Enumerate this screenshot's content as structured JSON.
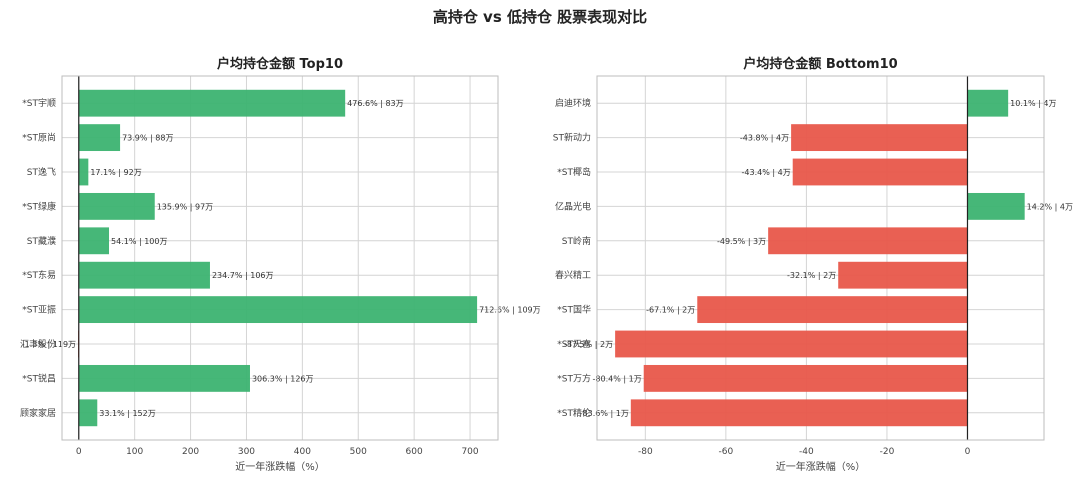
{
  "figure": {
    "suptitle": "高持仓 vs 低持仓 股票表现对比"
  },
  "chart_data": [
    {
      "type": "bar",
      "orientation": "horizontal",
      "title": "户均持仓金额 Top10",
      "xlabel": "近一年涨跌幅（%）",
      "ylabel": "",
      "xlim": [
        -30,
        750
      ],
      "xticks": [
        0,
        100,
        200,
        300,
        400,
        500,
        600,
        700
      ],
      "grid": true,
      "categories": [
        "*ST宇顺",
        "*ST原尚",
        "ST逸飞",
        "*ST绿康",
        "ST藏濮",
        "*ST东易",
        "*ST亚振",
        "汇丰股份",
        "*ST锐昌",
        "顾家家居"
      ],
      "values": [
        476.6,
        73.9,
        17.1,
        135.9,
        54.1,
        234.7,
        712.6,
        -1.3,
        306.3,
        33.1
      ],
      "labels": [
        "476.6% | 83万",
        "73.9% | 88万",
        "17.1% | 92万",
        "135.9% | 97万",
        "54.1% | 100万",
        "234.7% | 106万",
        "712.6% | 109万",
        "-1.3% | 119万",
        "306.3% | 126万",
        "33.1% | 152万"
      ],
      "positive_color": "#3cb371",
      "negative_color": "#e8574a"
    },
    {
      "type": "bar",
      "orientation": "horizontal",
      "title": "户均持仓金额 Bottom10",
      "xlabel": "近一年涨跌幅（%）",
      "ylabel": "",
      "xlim": [
        -92,
        19
      ],
      "xticks": [
        -80,
        -60,
        -40,
        -20,
        0
      ],
      "grid": true,
      "categories": [
        "启迪环境",
        "ST新动力",
        "*ST椰岛",
        "亿晶光电",
        "ST岭南",
        "春兴精工",
        "*ST国华",
        "*ST天喜",
        "*ST万方",
        "*ST精伦"
      ],
      "values": [
        10.1,
        -43.8,
        -43.4,
        14.2,
        -49.5,
        -32.1,
        -67.1,
        -87.5,
        -80.4,
        -83.6
      ],
      "labels": [
        "10.1% | 4万",
        "-43.8% | 4万",
        "-43.4% | 4万",
        "14.2% | 4万",
        "-49.5% | 3万",
        "-32.1% | 2万",
        "-67.1% | 2万",
        "-87.5% | 2万",
        "-80.4% | 1万",
        "-83.6% | 1万"
      ],
      "positive_color": "#3cb371",
      "negative_color": "#e8574a"
    }
  ]
}
